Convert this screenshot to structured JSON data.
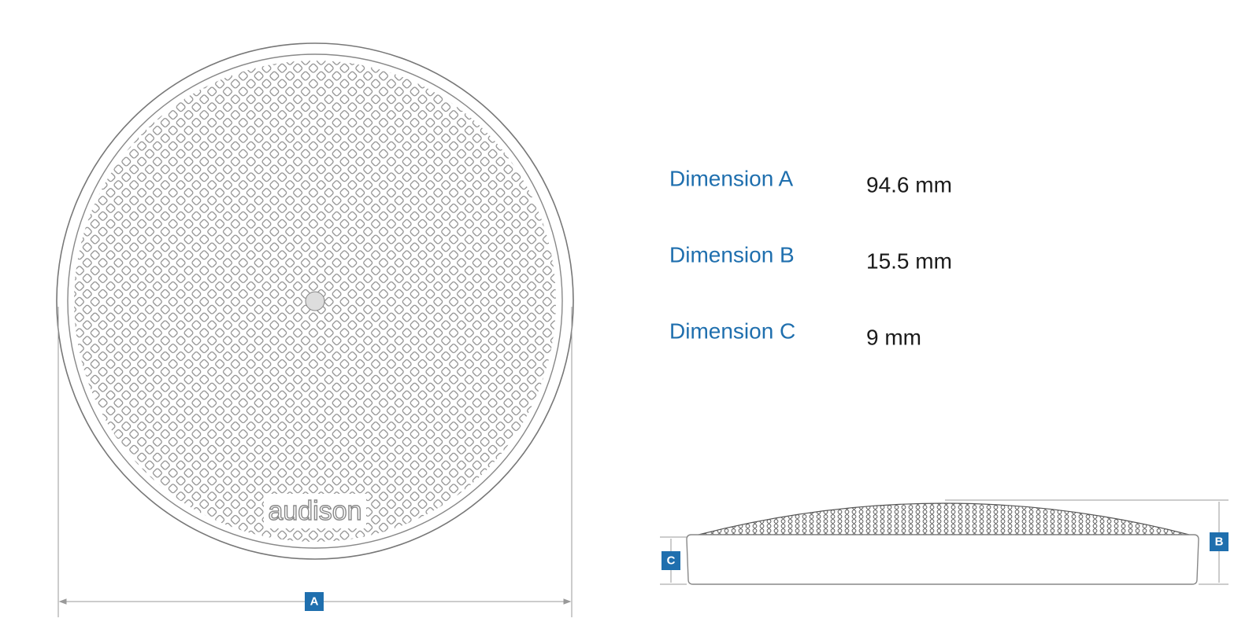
{
  "dimensions": [
    {
      "label": "Dimension A",
      "value": "94.6 mm"
    },
    {
      "label": "Dimension B",
      "value": "15.5 mm"
    },
    {
      "label": "Dimension C",
      "value": "9 mm"
    }
  ],
  "markers": [
    "A",
    "B",
    "C"
  ],
  "logo": "audison"
}
